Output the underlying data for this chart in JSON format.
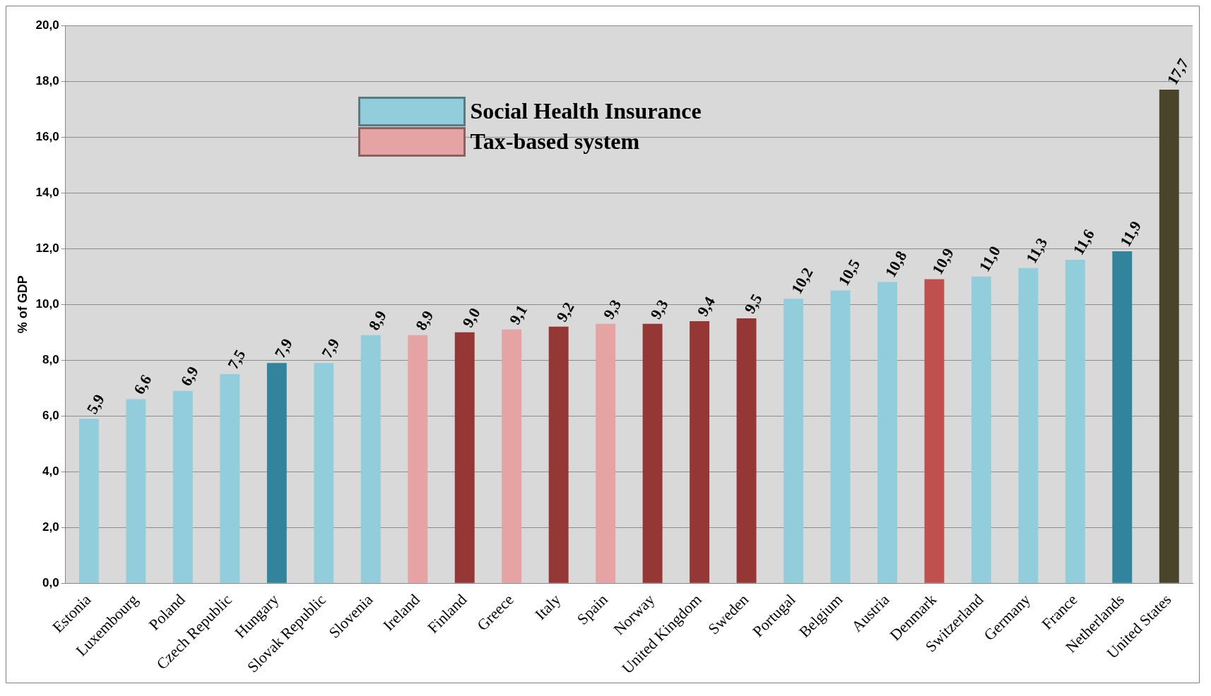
{
  "chart_data": {
    "type": "bar",
    "ylabel": "% of GDP",
    "categories": [
      "Estonia",
      "Luxembourg",
      "Poland",
      "Czech Republic",
      "Hungary",
      "Slovak Republic",
      "Slovenia",
      "Ireland",
      "Finland",
      "Greece",
      "Italy",
      "Spain",
      "Norway",
      "United Kingdom",
      "Sweden",
      "Portugal",
      "Belgium",
      "Austria",
      "Denmark",
      "Switzerland",
      "Germany",
      "France",
      "Netherlands",
      "United States"
    ],
    "series": [
      {
        "name": "Social Health Insurance",
        "color": "#92cddc",
        "values": [
          5.9,
          6.6,
          6.9,
          7.5,
          7.9,
          7.9,
          8.9,
          null,
          null,
          null,
          null,
          null,
          null,
          null,
          null,
          10.2,
          10.5,
          10.8,
          null,
          11.0,
          11.3,
          11.6,
          11.9,
          null
        ],
        "colors": [
          "#92cddc",
          "#92cddc",
          "#92cddc",
          "#92cddc",
          "#31849b",
          "#92cddc",
          "#92cddc",
          null,
          null,
          null,
          null,
          null,
          null,
          null,
          null,
          "#92cddc",
          "#92cddc",
          "#92cddc",
          null,
          "#92cddc",
          "#92cddc",
          "#92cddc",
          "#31849b",
          null
        ],
        "value_labels": [
          "5,9",
          "6,6",
          "6,9",
          "7,5",
          "7,9",
          "7,9",
          "8,9",
          null,
          null,
          null,
          null,
          null,
          null,
          null,
          null,
          "10,2",
          "10,5",
          "10,8",
          null,
          "11,0",
          "11,3",
          "11,6",
          "11,9",
          null
        ]
      },
      {
        "name": "Tax-based system",
        "color": "#e6a3a3",
        "values": [
          null,
          null,
          null,
          null,
          null,
          null,
          null,
          8.9,
          9.0,
          9.1,
          9.2,
          9.3,
          9.3,
          9.4,
          9.5,
          null,
          null,
          null,
          10.9,
          null,
          null,
          null,
          null,
          null
        ],
        "colors": [
          null,
          null,
          null,
          null,
          null,
          null,
          null,
          "#e6a3a3",
          "#953735",
          "#e6a3a3",
          "#953735",
          "#e6a3a3",
          "#953735",
          "#953735",
          "#953735",
          null,
          null,
          null,
          "#c0504d",
          null,
          null,
          null,
          null,
          null
        ],
        "value_labels": [
          null,
          null,
          null,
          null,
          null,
          null,
          null,
          "8,9",
          "9,0",
          "9,1",
          "9,2",
          "9,3",
          "9,3",
          "9,4",
          "9,5",
          null,
          null,
          null,
          "10,9",
          null,
          null,
          null,
          null,
          null
        ]
      },
      {
        "color": "#4a452a",
        "values": [
          null,
          null,
          null,
          null,
          null,
          null,
          null,
          null,
          null,
          null,
          null,
          null,
          null,
          null,
          null,
          null,
          null,
          null,
          null,
          null,
          null,
          null,
          null,
          17.7
        ],
        "value_labels": [
          null,
          null,
          null,
          null,
          null,
          null,
          null,
          null,
          null,
          null,
          null,
          null,
          null,
          null,
          null,
          null,
          null,
          null,
          null,
          null,
          null,
          null,
          null,
          "17,7"
        ]
      }
    ],
    "ylim": [
      0,
      20
    ],
    "yticks": [
      {
        "value": 0,
        "label": "0,0"
      },
      {
        "value": 2,
        "label": "2,0"
      },
      {
        "value": 4,
        "label": "4,0"
      },
      {
        "value": 6,
        "label": "6,0"
      },
      {
        "value": 8,
        "label": "8,0"
      },
      {
        "value": 10,
        "label": "10,0"
      },
      {
        "value": 12,
        "label": "12,0"
      },
      {
        "value": 14,
        "label": "14,0"
      },
      {
        "value": 16,
        "label": "16,0"
      },
      {
        "value": 18,
        "label": "18,0"
      },
      {
        "value": 20,
        "label": "20,0"
      }
    ],
    "grid": "y",
    "legend": "top"
  }
}
